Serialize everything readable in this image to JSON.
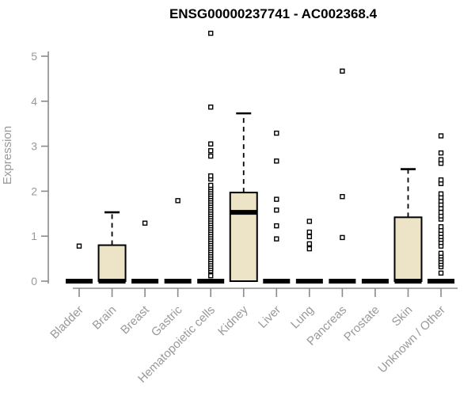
{
  "chart_data": {
    "type": "boxplot",
    "title": "ENSG00000237741 - AC002368.4",
    "xlabel": "",
    "ylabel": "Expression",
    "ylim": [
      0,
      5
    ],
    "yticks": [
      0,
      1,
      2,
      3,
      4,
      5
    ],
    "grid": false,
    "legend": null,
    "x_tick_rotation": 45,
    "categories": [
      "Bladder",
      "Brain",
      "Breast",
      "Gastric",
      "Hematopoietic cells",
      "Kidney",
      "Liver",
      "Lung",
      "Pancreas",
      "Prostate",
      "Skin",
      "Unknown / Other"
    ],
    "series": [
      {
        "category": "Bladder",
        "q1": 0,
        "median": 0,
        "q3": 0,
        "whisker_low": 0,
        "whisker_high": 0,
        "outliers": [
          0.78
        ]
      },
      {
        "category": "Brain",
        "q1": 0,
        "median": 0,
        "q3": 0.8,
        "whisker_low": 0,
        "whisker_high": 1.53,
        "outliers": []
      },
      {
        "category": "Breast",
        "q1": 0,
        "median": 0,
        "q3": 0,
        "whisker_low": 0,
        "whisker_high": 0,
        "outliers": [
          1.29
        ]
      },
      {
        "category": "Gastric",
        "q1": 0,
        "median": 0,
        "q3": 0,
        "whisker_low": 0,
        "whisker_high": 0,
        "outliers": [
          1.79
        ]
      },
      {
        "category": "Hematopoietic cells",
        "q1": 0,
        "median": 0,
        "q3": 0,
        "whisker_low": 0,
        "whisker_high": 0,
        "outliers": [
          0.12,
          0.23,
          0.28,
          0.33,
          0.38,
          0.43,
          0.48,
          0.53,
          0.58,
          0.63,
          0.68,
          0.73,
          0.78,
          0.83,
          0.88,
          0.93,
          0.98,
          1.03,
          1.08,
          1.13,
          1.18,
          1.23,
          1.28,
          1.33,
          1.38,
          1.43,
          1.48,
          1.53,
          1.58,
          1.63,
          1.68,
          1.73,
          1.78,
          1.83,
          1.88,
          1.93,
          1.98,
          2.03,
          2.08,
          2.13,
          2.27,
          2.34,
          2.78,
          2.9,
          3.05,
          3.87,
          5.51
        ]
      },
      {
        "category": "Kidney",
        "q1": 0,
        "median": 1.53,
        "q3": 1.97,
        "whisker_low": 0,
        "whisker_high": 3.73,
        "outliers": []
      },
      {
        "category": "Liver",
        "q1": 0,
        "median": 0,
        "q3": 0,
        "whisker_low": 0,
        "whisker_high": 0,
        "outliers": [
          0.94,
          1.23,
          1.58,
          1.82,
          2.67,
          3.29
        ]
      },
      {
        "category": "Lung",
        "q1": 0,
        "median": 0,
        "q3": 0,
        "whisker_low": 0,
        "whisker_high": 0,
        "outliers": [
          0.72,
          0.83,
          0.99,
          1.09,
          1.33
        ]
      },
      {
        "category": "Pancreas",
        "q1": 0,
        "median": 0,
        "q3": 0,
        "whisker_low": 0,
        "whisker_high": 0,
        "outliers": [
          0.97,
          1.88,
          4.67
        ]
      },
      {
        "category": "Prostate",
        "q1": 0,
        "median": 0,
        "q3": 0,
        "whisker_low": 0,
        "whisker_high": 0,
        "outliers": []
      },
      {
        "category": "Skin",
        "q1": 0,
        "median": 0,
        "q3": 1.42,
        "whisker_low": 0,
        "whisker_high": 2.49,
        "outliers": []
      },
      {
        "category": "Unknown / Other",
        "q1": 0,
        "median": 0,
        "q3": 0,
        "whisker_low": 0,
        "whisker_high": 0,
        "outliers": [
          0.18,
          0.32,
          0.38,
          0.44,
          0.5,
          0.56,
          0.62,
          0.78,
          0.86,
          0.93,
          0.99,
          1.06,
          1.13,
          1.21,
          1.38,
          1.45,
          1.53,
          1.62,
          1.7,
          1.78,
          1.86,
          1.94,
          2.17,
          2.25,
          2.62,
          2.7,
          2.85,
          3.23
        ]
      }
    ],
    "colors": {
      "box_fill": "#ede4c8",
      "box_border": "#000000",
      "median": "#000000",
      "whisker": "#000000",
      "outlier_fill": "#ffffff",
      "outlier_border": "#000000",
      "axis_line": "#8a8a8a",
      "tick_label": "#999999",
      "title_color": "#000000",
      "background": "#ffffff"
    }
  }
}
